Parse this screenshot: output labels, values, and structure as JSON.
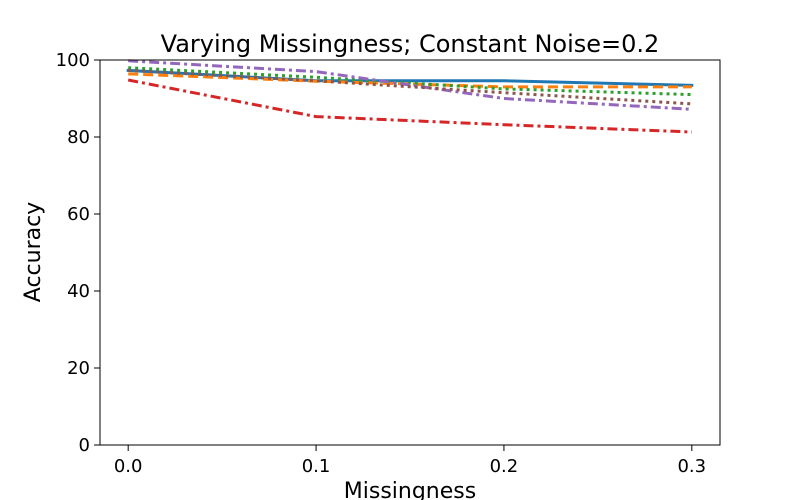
{
  "chart_data": {
    "type": "line",
    "title": "Varying Missingness; Constant Noise=0.2",
    "xlabel": "Missingness",
    "ylabel": "Accuracy",
    "xlim": [
      -0.015,
      0.315
    ],
    "ylim": [
      0,
      100
    ],
    "x_ticks": [
      "0.0",
      "0.1",
      "0.2",
      "0.3"
    ],
    "y_ticks": [
      "0",
      "20",
      "40",
      "60",
      "80",
      "100"
    ],
    "x": [
      0.0,
      0.1,
      0.2,
      0.3
    ],
    "grid": false,
    "legend": "none",
    "series": [
      {
        "values": [
          97.3,
          94.6,
          94.6,
          93.4
        ],
        "color": "#1f77b4",
        "style": "solid"
      },
      {
        "values": [
          96.4,
          94.5,
          93.0,
          93.0
        ],
        "color": "#ff7f0e",
        "style": "dashed"
      },
      {
        "values": [
          98.0,
          95.5,
          92.5,
          91.0
        ],
        "color": "#2ca02c",
        "style": "dotted"
      },
      {
        "values": [
          94.8,
          85.3,
          83.2,
          81.3
        ],
        "color": "#d62728",
        "style": "dashdot"
      },
      {
        "values": [
          99.8,
          97.0,
          90.0,
          87.2
        ],
        "color": "#9467bd",
        "style": "dashdot"
      },
      {
        "values": [
          97.3,
          94.6,
          91.5,
          88.6
        ],
        "color": "#8c564b",
        "style": "dotted"
      }
    ]
  }
}
